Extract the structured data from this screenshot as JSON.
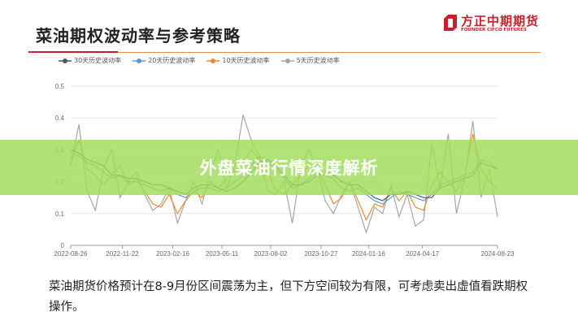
{
  "header": {
    "title": "菜油期权波动率与参考策略",
    "logo_cn": "方正中期期货",
    "logo_en": "FOUNDER CIFCO FUTURES",
    "accent_red": "#c8202a",
    "accent_orange": "#e08a50"
  },
  "banner": {
    "text": "外盘菜油行情深度解析",
    "color": "#a0dc5a"
  },
  "description": "菜油期货价格预计在8-9月份区间震荡为主，但下方空间较为有限，可考虑卖出虚值看跌期权操作。",
  "chart_data": {
    "type": "line",
    "title": "",
    "xlabel": "",
    "ylabel": "",
    "ylim": [
      0,
      0.5
    ],
    "yticks": [
      "0",
      "0.1",
      "0.2",
      "0.3",
      "0.4",
      "0.5"
    ],
    "xticks": [
      "2022-08-26",
      "2022-11-22",
      "2023-02-16",
      "2023-05-11",
      "2023-08-02",
      "2023-10-27",
      "2024-01-16",
      "2024-04-17",
      "2024-08-23"
    ],
    "x_range": [
      "2022-08-26",
      "2024-08-23"
    ],
    "grid": true,
    "legend": "top",
    "series": [
      {
        "name": "30天历史波动率",
        "color": "#4b5a6e",
        "values": [
          0.3,
          0.29,
          0.27,
          0.26,
          0.25,
          0.22,
          0.22,
          0.21,
          0.21,
          0.2,
          0.19,
          0.19,
          0.18,
          0.17,
          0.16,
          0.18,
          0.19,
          0.19,
          0.18,
          0.17,
          0.18,
          0.2,
          0.23,
          0.26,
          0.27,
          0.25,
          0.22,
          0.19,
          0.19,
          0.2,
          0.22,
          0.23,
          0.22,
          0.2,
          0.19,
          0.19,
          0.17,
          0.15,
          0.14,
          0.16,
          0.16,
          0.17,
          0.16,
          0.15,
          0.15,
          0.18,
          0.19,
          0.2,
          0.21,
          0.22,
          0.26,
          0.25,
          0.24
        ]
      },
      {
        "name": "20天历史波动率",
        "color": "#5b9bd5",
        "values": [
          0.29,
          0.28,
          0.26,
          0.25,
          0.23,
          0.21,
          0.22,
          0.2,
          0.2,
          0.19,
          0.18,
          0.17,
          0.18,
          0.16,
          0.15,
          0.17,
          0.18,
          0.18,
          0.17,
          0.18,
          0.2,
          0.22,
          0.25,
          0.28,
          0.26,
          0.24,
          0.21,
          0.18,
          0.19,
          0.21,
          0.23,
          0.22,
          0.21,
          0.18,
          0.17,
          0.18,
          0.16,
          0.14,
          0.13,
          0.15,
          0.17,
          0.16,
          0.15,
          0.14,
          0.16,
          0.19,
          0.2,
          0.21,
          0.22,
          0.23,
          0.27,
          0.26,
          0.24
        ]
      },
      {
        "name": "10天历史波动率",
        "color": "#ed8b2f",
        "values": [
          0.27,
          0.33,
          0.24,
          0.22,
          0.19,
          0.22,
          0.25,
          0.19,
          0.21,
          0.17,
          0.13,
          0.12,
          0.16,
          0.1,
          0.14,
          0.17,
          0.15,
          0.2,
          0.18,
          0.21,
          0.23,
          0.26,
          0.3,
          0.27,
          0.23,
          0.17,
          0.16,
          0.19,
          0.22,
          0.25,
          0.24,
          0.19,
          0.13,
          0.15,
          0.2,
          0.14,
          0.08,
          0.13,
          0.12,
          0.18,
          0.14,
          0.17,
          0.12,
          0.11,
          0.19,
          0.23,
          0.2,
          0.17,
          0.22,
          0.35,
          0.24,
          0.2,
          0.18
        ]
      },
      {
        "name": "5天历史波动率",
        "color": "#a6a6a6",
        "values": [
          0.25,
          0.38,
          0.17,
          0.11,
          0.24,
          0.3,
          0.15,
          0.2,
          0.23,
          0.16,
          0.11,
          0.13,
          0.18,
          0.07,
          0.14,
          0.2,
          0.13,
          0.23,
          0.3,
          0.18,
          0.25,
          0.41,
          0.33,
          0.28,
          0.17,
          0.16,
          0.2,
          0.07,
          0.24,
          0.3,
          0.25,
          0.14,
          0.1,
          0.16,
          0.2,
          0.12,
          0.04,
          0.12,
          0.1,
          0.19,
          0.09,
          0.16,
          0.06,
          0.08,
          0.32,
          0.18,
          0.35,
          0.1,
          0.21,
          0.39,
          0.15,
          0.24,
          0.09
        ]
      }
    ]
  }
}
